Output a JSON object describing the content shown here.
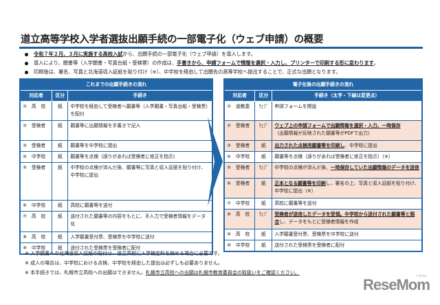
{
  "title": "道立高等学校入学者選抜出願手続の一部電子化（ウェブ申請）の概要",
  "bullets": [
    [
      {
        "t": "令和７年２月、３月に実施する高校入試",
        "em": true
      },
      {
        "t": "から、出願手続の一部電子化（ウェブ申請）を導入します。"
      }
    ],
    [
      {
        "t": "導入により、願書等（入学願書・写真台紙・受検票）の作成は、"
      },
      {
        "t": "手書きから、申請フォームで情報を選択・入力し、プリンターで印刷する形に変わります",
        "em": true
      },
      {
        "t": "。"
      }
    ],
    [
      {
        "t": "印刷後は、署名、写真と北海道収入証紙を貼り付け（※）、中学校を経由して出願先の高等学校へ提出することで、正式な出願となります。"
      }
    ]
  ],
  "left_table": {
    "caption": "これまでの出願手続きの流れ",
    "headers": [
      "対応者",
      "区分",
      "手続き"
    ],
    "rows": [
      {
        "who": "①　高　校",
        "kb": "紙",
        "proc": [
          {
            "t": "中学校を経由して受検者へ願書等（入学願書・写真台紙・受検票）を配付"
          }
        ]
      },
      {
        "who": "②　受検者",
        "kb": "紙",
        "proc": [
          {
            "t": "願書等に出願情報を手書きで記入"
          }
        ]
      },
      {
        "who": "③　受検者",
        "kb": "紙",
        "proc": [
          {
            "t": "願書等を中学校に提出"
          }
        ]
      },
      {
        "who": "④　中学校",
        "kb": "紙",
        "proc": [
          {
            "t": "願書等を点検（誤りがあれば受検者に修正を指示）"
          }
        ]
      },
      {
        "who": "⑤　受検者",
        "kb": "紙",
        "proc": [
          {
            "t": "中学校の点検が済んだ後、願書等に写真と収入証紙を貼り付け、中学校に提出"
          }
        ]
      },
      {
        "who": "⑥　中学校",
        "kb": "紙",
        "proc": [
          {
            "t": "高校に願書等を送付"
          }
        ]
      },
      {
        "who": "⑦　高　校",
        "kb": "紙",
        "proc": [
          {
            "t": "送付された願書等の内容をもとに、手入力で受検者情報をデータ化"
          }
        ]
      },
      {
        "who": "⑧　高　校",
        "kb": "紙",
        "proc": [
          {
            "t": "入学願書受付票、受検票を中学校に送付"
          }
        ]
      },
      {
        "who": "⑨　中学校",
        "kb": "紙",
        "proc": [
          {
            "t": "送付された受検票を受検者に配付"
          }
        ]
      }
    ]
  },
  "right_table": {
    "caption": "電子化後の出願手続きの流れ",
    "headers": [
      "対応者",
      "区分",
      "手続き（太字・下線は変更点）"
    ],
    "rows": [
      {
        "who": "①　道教委",
        "kb": "ｳｪﾌﾞ",
        "pink": false,
        "proc": [
          {
            "t": "申請フォームを開設"
          }
        ]
      },
      {
        "who": "②　受検者",
        "kb": "ｳｪﾌﾞ",
        "pink": true,
        "proc": [
          {
            "t": "ウェブ上の申請フォームで出願情報を選択・入力、一時保存",
            "em": true
          },
          {
            "t": "\n（出願情報が反映された願書等がPDFで出力）"
          }
        ]
      },
      {
        "who": "③　受検者",
        "kb": "紙",
        "pink": true,
        "proc": [
          {
            "t": "出力された点検用願書等を印刷し",
            "em": true
          },
          {
            "t": "、中学校に提出"
          }
        ]
      },
      {
        "who": "④　中学校",
        "kb": "紙",
        "pink": false,
        "proc": [
          {
            "t": "願書等を点検（誤りがあれば受検者に修正を指示）（※）"
          }
        ]
      },
      {
        "who": "⑤　受検者",
        "kb": "ｳｪﾌﾞ",
        "pink": true,
        "proc": [
          {
            "t": "中学校の点検が済んだ後、"
          },
          {
            "t": "一時保存していた出願情報のデータを送信",
            "em": true
          }
        ]
      },
      {
        "who": "⑥　受検者",
        "kb": "紙",
        "pink": true,
        "proc": [
          {
            "t": "正本となる願書等を印刷",
            "em": true
          },
          {
            "t": "し、署名の上、写真と収入証紙を貼り付け、中学校に提出（※）"
          }
        ]
      },
      {
        "who": "⑦　中学校",
        "kb": "紙",
        "pink": false,
        "proc": [
          {
            "t": "高校に願書等を送付"
          }
        ]
      },
      {
        "who": "⑧　高　校",
        "kb": "ｳｪﾌﾞ",
        "pink": true,
        "proc": [
          {
            "t": "受検者が送信したデータを受領。中学校から送付された願書等と照合",
            "em": true
          },
          {
            "t": "し、データをもとに受検者情報を作成"
          }
        ]
      },
      {
        "who": "⑨　高　校",
        "kb": "紙",
        "pink": false,
        "proc": [
          {
            "t": "入学願書受付票、受検票を中学校に送付"
          }
        ]
      },
      {
        "who": "⑩　中学校",
        "kb": "紙",
        "pink": false,
        "proc": [
          {
            "t": "送付された受検票を受検者に配付"
          }
        ]
      }
    ]
  },
  "footnotes": [
    [
      {
        "t": "※ 入学願書への北海道収入証紙の貼付は、道立高校に入学検定料を納める場合に必要です。"
      }
    ],
    [
      {
        "t": "※ 成人の場合は、中学校における点検、中学校を経由した提出は必ずしも必要ありません。"
      }
    ],
    [
      {
        "t": "※ 本手続きでは、札幌市立高校への出願はできません。"
      },
      {
        "t": "札幌市立高校への出願は札幌市教育委員会の取扱いをご確認ください。",
        "ul": true
      }
    ]
  ],
  "logo": {
    "text": "ReseMom",
    "ruby": "リセマム"
  },
  "colors": {
    "accent": "#2266a8",
    "highlight": "#f9e1d6"
  }
}
